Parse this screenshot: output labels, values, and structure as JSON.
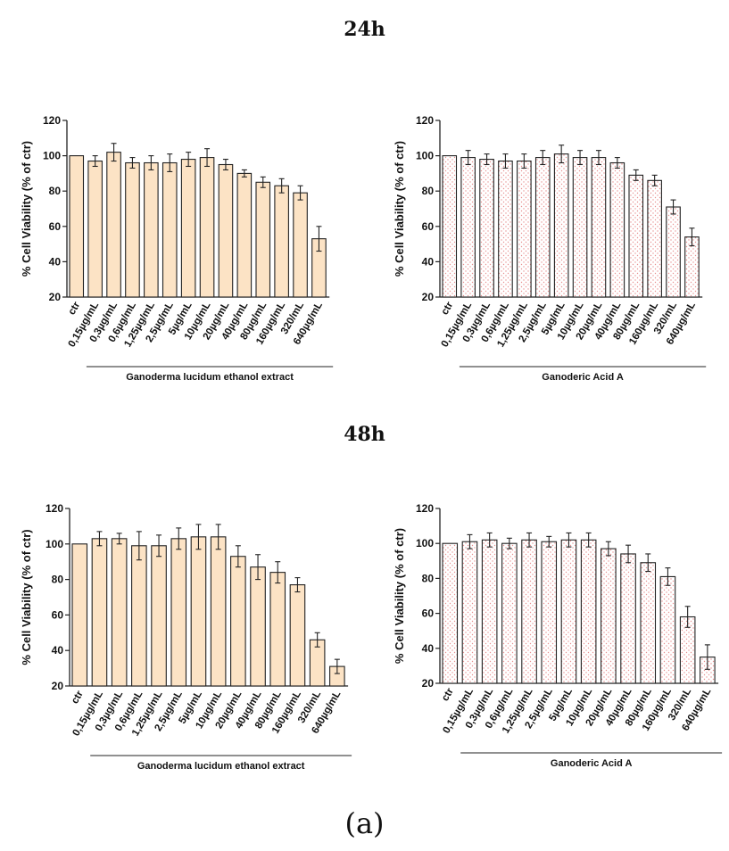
{
  "section_titles": {
    "t24": "24h",
    "t48": "48h"
  },
  "figure_label": "(a)",
  "colors": {
    "extract_fill": "#fce3c5",
    "acid_fill": "#ffffff",
    "acid_dots": "#e89090",
    "stroke": "#222222"
  },
  "chart_data": [
    {
      "id": "c1",
      "type": "bar",
      "panel": "24h",
      "ylabel": "% Cell Viability (% of ctr)",
      "group_label": "Ganoderma lucidum ethanol extract",
      "categories": [
        "ctr",
        "0,15µg/mL",
        "0,3µg/mL",
        "0,6µg/mL",
        "1,25µg/mL",
        "2,5µg/mL",
        "5µg/mL",
        "10µg/mL",
        "20µg/mL",
        "40µg/mL",
        "80µg/mL",
        "160µg/mL",
        "320/mL",
        "640µg/mL"
      ],
      "values": [
        100,
        97,
        102,
        96,
        96,
        96,
        98,
        99,
        95,
        90,
        85,
        83,
        79,
        53
      ],
      "errors": [
        0,
        3,
        5,
        3,
        4,
        5,
        4,
        5,
        3,
        2,
        3,
        4,
        4,
        7
      ],
      "ylim": [
        20,
        120
      ],
      "yticks": [
        20,
        40,
        60,
        80,
        100,
        120
      ],
      "pattern": "solid"
    },
    {
      "id": "c2",
      "type": "bar",
      "panel": "24h",
      "ylabel": "% Cell Viability (% of ctr)",
      "group_label": "Ganoderic Acid A",
      "categories": [
        "ctr",
        "0,15µg/mL",
        "0,3µg/mL",
        "0,6µg/mL",
        "1,25µg/mL",
        "2,5µg/mL",
        "5µg/mL",
        "10µg/mL",
        "20µg/mL",
        "40µg/mL",
        "80µg/mL",
        "160µg/mL",
        "320/mL",
        "640µg/mL"
      ],
      "values": [
        100,
        99,
        98,
        97,
        97,
        99,
        101,
        99,
        99,
        96,
        89,
        86,
        71,
        54
      ],
      "errors": [
        0,
        4,
        3,
        4,
        4,
        4,
        5,
        4,
        4,
        3,
        3,
        3,
        4,
        5
      ],
      "ylim": [
        20,
        120
      ],
      "yticks": [
        20,
        40,
        60,
        80,
        100,
        120
      ],
      "pattern": "dots"
    },
    {
      "id": "c3",
      "type": "bar",
      "panel": "48h",
      "ylabel": "% Cell Viability (% of ctr)",
      "group_label": "Ganoderma lucidum ethanol extract",
      "categories": [
        "ctr",
        "0,15µg/mL",
        "0,3µg/mL",
        "0,6µg/mL",
        "1,25µg/mL",
        "2,5µg/mL",
        "5µg/mL",
        "10µg/mL",
        "20µg/mL",
        "40µg/mL",
        "80µg/mL",
        "160µg/mL",
        "320/mL",
        "640µg/mL"
      ],
      "values": [
        100,
        103,
        103,
        99,
        99,
        103,
        104,
        104,
        93,
        87,
        84,
        77,
        46,
        31
      ],
      "errors": [
        0,
        4,
        3,
        8,
        6,
        6,
        7,
        7,
        6,
        7,
        6,
        4,
        4,
        4
      ],
      "ylim": [
        20,
        120
      ],
      "yticks": [
        20,
        40,
        60,
        80,
        100,
        120
      ],
      "pattern": "solid"
    },
    {
      "id": "c4",
      "type": "bar",
      "panel": "48h",
      "ylabel": "% Cell Viability (% of ctr)",
      "group_label": "Ganoderic Acid A",
      "categories": [
        "ctr",
        "0,15µg/mL",
        "0,3µg/mL",
        "0,6µg/mL",
        "1,25µg/mL",
        "2,5µg/mL",
        "5µg/mL",
        "10µg/mL",
        "20µg/mL",
        "40µg/mL",
        "80µg/mL",
        "160µg/mL",
        "320/mL",
        "640µg/mL"
      ],
      "values": [
        100,
        101,
        102,
        100,
        102,
        101,
        102,
        102,
        97,
        94,
        89,
        81,
        58,
        35
      ],
      "errors": [
        0,
        4,
        4,
        3,
        4,
        3,
        4,
        4,
        4,
        5,
        5,
        5,
        6,
        7
      ],
      "ylim": [
        20,
        120
      ],
      "yticks": [
        20,
        40,
        60,
        80,
        100,
        120
      ],
      "pattern": "dots"
    }
  ]
}
